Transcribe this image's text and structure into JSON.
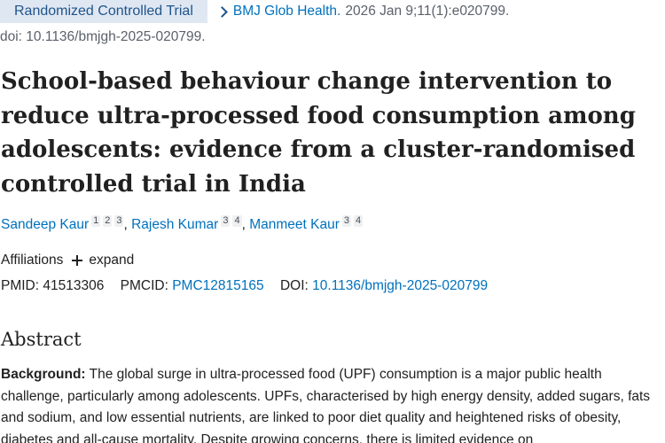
{
  "meta": {
    "publication_type": "Randomized Controlled Trial",
    "journal": "BMJ Glob Health.",
    "citation": "2026 Jan 9;11(1):e020799.",
    "doi_line": "doi: 10.1136/bmjgh-2025-020799."
  },
  "article": {
    "title": "School-based behaviour change intervention to reduce ultra-processed food consumption among adolescents: evidence from a cluster-randomised controlled trial in India"
  },
  "authors": [
    {
      "name": "Sandeep Kaur",
      "affiliations": [
        "1",
        "2",
        "3"
      ],
      "separator": ", "
    },
    {
      "name": "Rajesh Kumar",
      "affiliations": [
        "3",
        "4"
      ],
      "separator": ", "
    },
    {
      "name": "Manmeet Kaur",
      "affiliations": [
        "3",
        "4"
      ],
      "separator": ""
    }
  ],
  "affiliations": {
    "label": "Affiliations",
    "expand_label": "expand"
  },
  "identifiers": {
    "pmid_label": "PMID:",
    "pmid": "41513306",
    "pmcid_label": "PMCID:",
    "pmcid": "PMC12815165",
    "doi_label": "DOI:",
    "doi": "10.1136/bmjgh-2025-020799"
  },
  "abstract": {
    "heading": "Abstract",
    "background_label": "Background:",
    "background_text": " The global surge in ultra-processed food (UPF) consumption is a major public health challenge, particularly among adolescents. UPFs, characterised by high energy density, added sugars, fats and sodium, and low essential nutrients, are linked to poor diet quality and heightened risks of obesity, diabetes and all-cause mortality. Despite growing concerns, there is limited evidence on"
  },
  "icons": {
    "breadcrumb": "chevron-right-icon",
    "expand": "plus-icon"
  },
  "colors": {
    "link": "#0071bc",
    "pub_type_bg": "#dfe7f3",
    "muted_text": "#5b616b",
    "body_text": "#212121"
  }
}
